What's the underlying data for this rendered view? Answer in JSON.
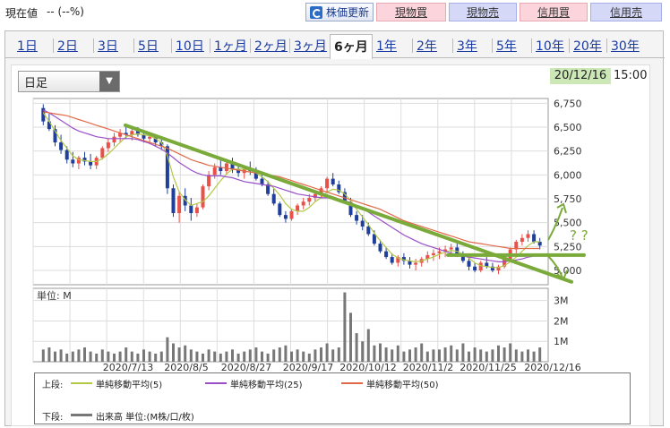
{
  "header": {
    "price_label": "現在値",
    "price_value": "-- (--%)",
    "refresh_label": "株価更新",
    "buttons": [
      {
        "label": "現物買",
        "kind": "buy"
      },
      {
        "label": "現物売",
        "kind": "sell"
      },
      {
        "label": "信用買",
        "kind": "buy"
      },
      {
        "label": "信用売",
        "kind": "sell"
      }
    ]
  },
  "tabs": [
    {
      "label": "1日"
    },
    {
      "label": "2日"
    },
    {
      "label": "3日"
    },
    {
      "label": "5日"
    },
    {
      "label": "10日"
    },
    {
      "label": "1ヶ月"
    },
    {
      "label": "2ヶ月"
    },
    {
      "label": "3ヶ月"
    },
    {
      "label": "6ヶ月",
      "active": true
    },
    {
      "label": "1年"
    },
    {
      "label": "2年"
    },
    {
      "label": "3年"
    },
    {
      "label": "5年"
    },
    {
      "label": "10年"
    },
    {
      "label": "20年"
    },
    {
      "label": "30年"
    }
  ],
  "period_select": {
    "value": "日足"
  },
  "timestamp": {
    "date": "20/12/16",
    "time": "15:00"
  },
  "colors": {
    "up": "#e8504a",
    "down": "#1f3f9a",
    "ma5": "#b4c846",
    "ma25": "#9a4fc8",
    "ma50": "#e06a48",
    "trend": "#7aaa3a",
    "volume": "#777777"
  },
  "chart_data": {
    "type": "candlestick",
    "price_axis": {
      "ticks": [
        5000,
        5250,
        5500,
        5750,
        6000,
        6250,
        6500,
        6750
      ],
      "tick_labels": [
        "5,000",
        "5,250",
        "5,500",
        "5,750",
        "6,000",
        "6,250",
        "6,500",
        "6,750"
      ],
      "ylim": [
        4850,
        6800
      ]
    },
    "volume_axis": {
      "unit_label": "単位: M",
      "ticks": [
        1,
        2,
        3
      ],
      "tick_labels": [
        "1M",
        "2M",
        "3M"
      ],
      "ylim": [
        0,
        3.6
      ]
    },
    "date_labels": [
      "2020/7/13",
      "2020/8/5",
      "2020/8/27",
      "2020/9/17",
      "2020/10/12",
      "2020/11/2",
      "2020/11/25",
      "2020/12/16"
    ],
    "candles": [
      [
        6700,
        6740,
        6520,
        6560
      ],
      [
        6560,
        6640,
        6460,
        6480
      ],
      [
        6480,
        6520,
        6300,
        6340
      ],
      [
        6340,
        6420,
        6220,
        6260
      ],
      [
        6260,
        6300,
        6120,
        6160
      ],
      [
        6160,
        6240,
        6080,
        6120
      ],
      [
        6120,
        6200,
        6060,
        6180
      ],
      [
        6180,
        6240,
        6100,
        6140
      ],
      [
        6140,
        6220,
        6060,
        6100
      ],
      [
        6100,
        6200,
        6060,
        6180
      ],
      [
        6180,
        6300,
        6160,
        6280
      ],
      [
        6280,
        6380,
        6240,
        6340
      ],
      [
        6340,
        6440,
        6300,
        6400
      ],
      [
        6400,
        6480,
        6340,
        6440
      ],
      [
        6440,
        6500,
        6380,
        6420
      ],
      [
        6420,
        6480,
        6360,
        6460
      ],
      [
        6460,
        6500,
        6400,
        6420
      ],
      [
        6420,
        6460,
        6340,
        6380
      ],
      [
        6380,
        6440,
        6320,
        6400
      ],
      [
        6400,
        6420,
        6300,
        6340
      ],
      [
        6340,
        6380,
        6260,
        6300
      ],
      [
        6300,
        6320,
        5800,
        5860
      ],
      [
        5860,
        5900,
        5560,
        5600
      ],
      [
        5600,
        5820,
        5500,
        5780
      ],
      [
        5780,
        5860,
        5620,
        5680
      ],
      [
        5680,
        5760,
        5520,
        5600
      ],
      [
        5600,
        5700,
        5560,
        5660
      ],
      [
        5660,
        5900,
        5640,
        5880
      ],
      [
        5880,
        6040,
        5840,
        6000
      ],
      [
        6000,
        6120,
        5960,
        6080
      ],
      [
        6080,
        6160,
        6000,
        6040
      ],
      [
        6040,
        6160,
        6000,
        6120
      ],
      [
        6120,
        6180,
        6020,
        6060
      ],
      [
        6060,
        6120,
        5980,
        6020
      ],
      [
        6020,
        6100,
        5960,
        6060
      ],
      [
        6060,
        6140,
        6000,
        6040
      ],
      [
        6040,
        6080,
        5940,
        5960
      ],
      [
        5960,
        6000,
        5880,
        5900
      ],
      [
        5900,
        5940,
        5780,
        5800
      ],
      [
        5800,
        5860,
        5680,
        5700
      ],
      [
        5700,
        5720,
        5560,
        5580
      ],
      [
        5580,
        5620,
        5500,
        5540
      ],
      [
        5540,
        5640,
        5520,
        5620
      ],
      [
        5620,
        5700,
        5580,
        5680
      ],
      [
        5680,
        5760,
        5640,
        5720
      ],
      [
        5720,
        5800,
        5680,
        5760
      ],
      [
        5760,
        5840,
        5720,
        5800
      ],
      [
        5800,
        5880,
        5760,
        5860
      ],
      [
        5860,
        5980,
        5820,
        5960
      ],
      [
        5960,
        6020,
        5880,
        5900
      ],
      [
        5900,
        5940,
        5800,
        5820
      ],
      [
        5820,
        5860,
        5700,
        5720
      ],
      [
        5720,
        5760,
        5560,
        5580
      ],
      [
        5580,
        5620,
        5480,
        5520
      ],
      [
        5520,
        5580,
        5420,
        5460
      ],
      [
        5460,
        5500,
        5360,
        5380
      ],
      [
        5380,
        5420,
        5260,
        5280
      ],
      [
        5280,
        5320,
        5180,
        5200
      ],
      [
        5200,
        5240,
        5120,
        5140
      ],
      [
        5140,
        5180,
        5060,
        5080
      ],
      [
        5080,
        5160,
        5040,
        5140
      ],
      [
        5140,
        5180,
        5060,
        5100
      ],
      [
        5100,
        5140,
        5020,
        5060
      ],
      [
        5060,
        5120,
        5000,
        5080
      ],
      [
        5080,
        5140,
        5040,
        5120
      ],
      [
        5120,
        5200,
        5080,
        5160
      ],
      [
        5160,
        5220,
        5100,
        5180
      ],
      [
        5180,
        5240,
        5120,
        5200
      ],
      [
        5200,
        5260,
        5140,
        5220
      ],
      [
        5220,
        5280,
        5160,
        5240
      ],
      [
        5240,
        5280,
        5140,
        5160
      ],
      [
        5160,
        5200,
        5080,
        5100
      ],
      [
        5100,
        5140,
        5000,
        5040
      ],
      [
        5040,
        5080,
        4980,
        5000
      ],
      [
        5000,
        5100,
        4980,
        5080
      ],
      [
        5080,
        5140,
        5020,
        5040
      ],
      [
        5040,
        5080,
        4980,
        5000
      ],
      [
        5000,
        5060,
        4960,
        5040
      ],
      [
        5040,
        5140,
        5020,
        5120
      ],
      [
        5120,
        5240,
        5100,
        5220
      ],
      [
        5220,
        5320,
        5180,
        5300
      ],
      [
        5300,
        5380,
        5260,
        5340
      ],
      [
        5340,
        5420,
        5300,
        5380
      ],
      [
        5380,
        5420,
        5280,
        5300
      ],
      [
        5300,
        5340,
        5220,
        5260
      ]
    ],
    "ma5": [
      6650,
      6560,
      6460,
      6360,
      6280,
      6200,
      6160,
      6150,
      6140,
      6140,
      6170,
      6220,
      6280,
      6340,
      6400,
      6420,
      6430,
      6420,
      6410,
      6380,
      6340,
      6200,
      5980,
      5820,
      5740,
      5680,
      5700,
      5720,
      5780,
      5860,
      5940,
      6010,
      6060,
      6060,
      6060,
      6050,
      6020,
      5980,
      5930,
      5860,
      5790,
      5700,
      5640,
      5620,
      5620,
      5660,
      5720,
      5760,
      5820,
      5850,
      5840,
      5800,
      5730,
      5640,
      5560,
      5480,
      5390,
      5310,
      5240,
      5170,
      5130,
      5110,
      5100,
      5090,
      5100,
      5120,
      5140,
      5170,
      5190,
      5210,
      5200,
      5170,
      5130,
      5080,
      5050,
      5040,
      5030,
      5030,
      5050,
      5090,
      5140,
      5200,
      5260,
      5300,
      5300
    ],
    "ma25": [
      6680,
      6650,
      6610,
      6570,
      6530,
      6490,
      6460,
      6440,
      6420,
      6400,
      6390,
      6380,
      6380,
      6380,
      6380,
      6380,
      6370,
      6350,
      6330,
      6300,
      6270,
      6230,
      6180,
      6130,
      6090,
      6050,
      6020,
      6000,
      5990,
      5990,
      5990,
      5980,
      5970,
      5950,
      5930,
      5920,
      5910,
      5900,
      5890,
      5880,
      5860,
      5840,
      5820,
      5800,
      5790,
      5780,
      5770,
      5760,
      5760,
      5750,
      5740,
      5730,
      5710,
      5680,
      5650,
      5610,
      5570,
      5530,
      5490,
      5450,
      5410,
      5370,
      5340,
      5310,
      5280,
      5260,
      5240,
      5220,
      5200,
      5180,
      5170,
      5150,
      5140,
      5130,
      5120,
      5110,
      5100,
      5090,
      5090,
      5100,
      5110,
      5120,
      5140,
      5150,
      5160
    ],
    "ma50": [
      6660,
      6650,
      6640,
      6630,
      6620,
      6600,
      6580,
      6560,
      6540,
      6520,
      6500,
      6480,
      6460,
      6440,
      6420,
      6400,
      6380,
      6360,
      6340,
      6320,
      6300,
      6280,
      6250,
      6220,
      6190,
      6160,
      6140,
      6120,
      6100,
      6090,
      6080,
      6070,
      6060,
      6050,
      6040,
      6030,
      6020,
      6010,
      6000,
      5990,
      5980,
      5960,
      5940,
      5920,
      5900,
      5880,
      5860,
      5840,
      5820,
      5800,
      5780,
      5760,
      5740,
      5720,
      5700,
      5680,
      5660,
      5640,
      5610,
      5580,
      5550,
      5520,
      5500,
      5480,
      5460,
      5440,
      5420,
      5400,
      5380,
      5360,
      5340,
      5320,
      5300,
      5290,
      5280,
      5270,
      5260,
      5250,
      5240,
      5230,
      5230,
      5230,
      5230,
      5230,
      5230
    ],
    "volume": [
      0.6,
      0.7,
      0.5,
      0.6,
      0.4,
      0.5,
      0.6,
      0.7,
      0.5,
      0.4,
      0.6,
      0.5,
      0.4,
      0.5,
      0.7,
      0.5,
      0.4,
      0.6,
      0.5,
      0.4,
      0.5,
      1.2,
      0.9,
      0.7,
      0.8,
      0.6,
      0.5,
      0.4,
      0.6,
      0.5,
      0.4,
      0.5,
      0.6,
      0.4,
      0.5,
      0.6,
      0.7,
      0.5,
      0.4,
      0.6,
      0.7,
      0.8,
      0.5,
      0.6,
      0.5,
      0.4,
      0.6,
      0.7,
      0.9,
      0.6,
      0.7,
      3.4,
      2.4,
      1.4,
      1.0,
      1.6,
      0.8,
      0.9,
      0.7,
      0.6,
      0.8,
      0.5,
      0.6,
      0.7,
      0.9,
      0.5,
      0.6,
      0.6,
      0.7,
      0.8,
      0.6,
      0.9,
      0.5,
      0.7,
      0.6,
      0.5,
      0.6,
      0.8,
      0.7,
      0.9,
      0.6,
      0.5,
      0.6,
      0.5,
      0.7
    ]
  },
  "legend": {
    "upper_label": "上段:",
    "ma5_label": "単純移動平均(5)",
    "ma25_label": "単純移動平均(25)",
    "ma50_label": "単純移動平均(50)",
    "lower_label": "下段:",
    "volume_label": "出来高 単位:(M株/口/枚)"
  },
  "annotation": {
    "question_marks": "? ?"
  }
}
